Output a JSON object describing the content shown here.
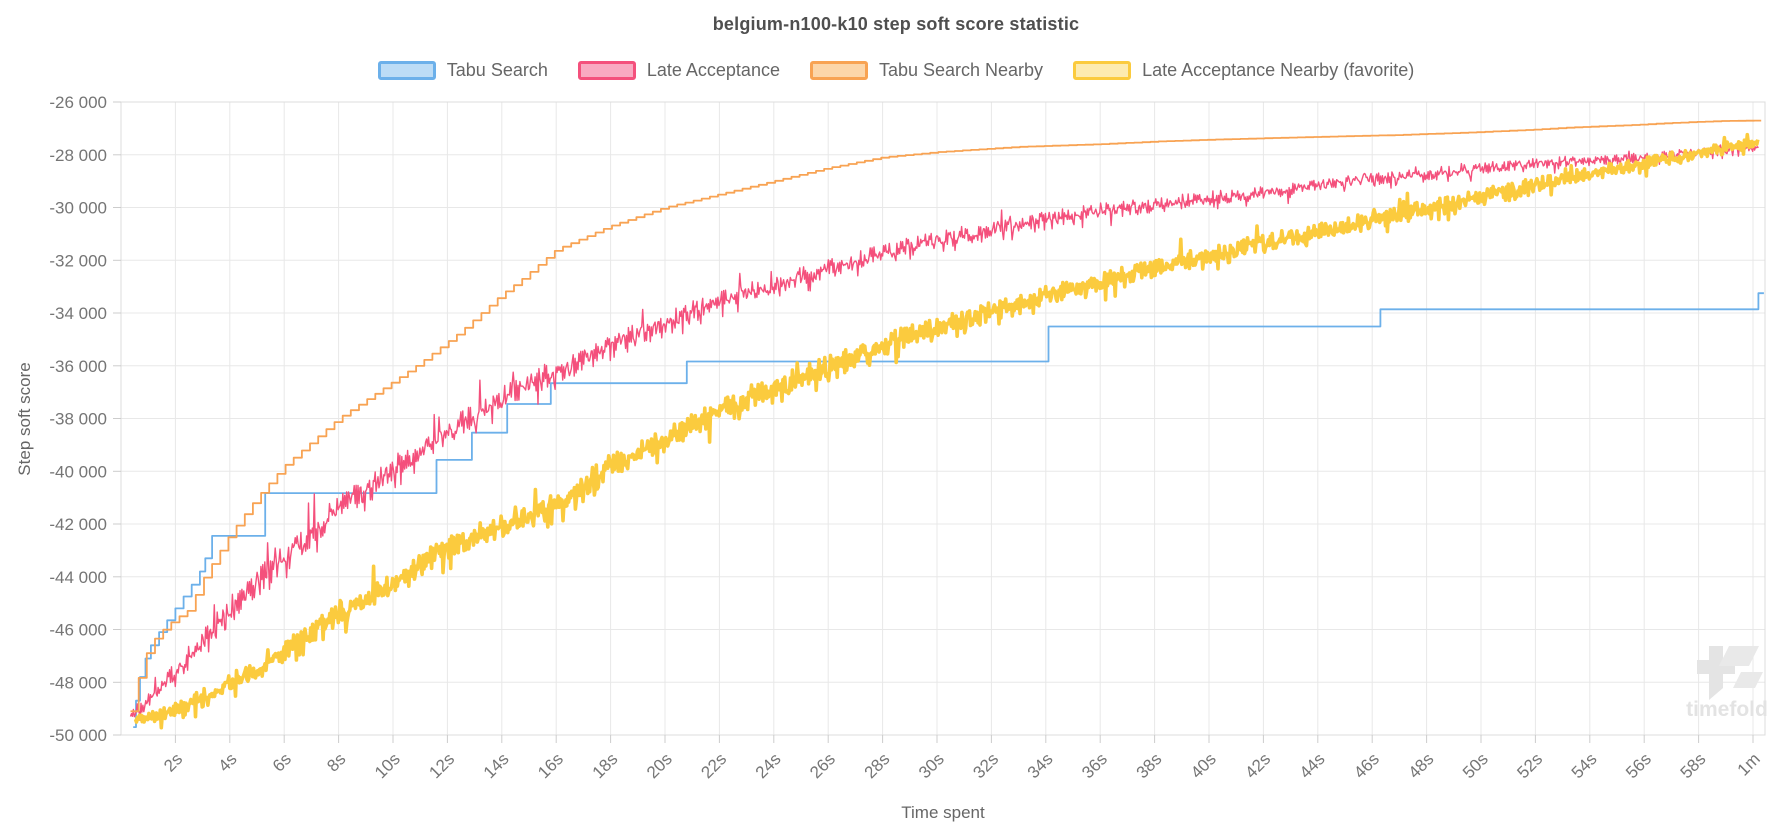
{
  "chart_data": {
    "type": "line",
    "title": "belgium-n100-k10 step soft score statistic",
    "xlabel": "Time spent",
    "ylabel": "Step soft score",
    "ylim": [
      -50000,
      -26000
    ],
    "xlim_seconds": [
      0,
      60.4
    ],
    "grid": true,
    "legend_position": "top",
    "watermark": "timefold",
    "x_ticks": [
      [
        2,
        "2s"
      ],
      [
        4,
        "4s"
      ],
      [
        6,
        "6s"
      ],
      [
        8,
        "8s"
      ],
      [
        10,
        "10s"
      ],
      [
        12,
        "12s"
      ],
      [
        14,
        "14s"
      ],
      [
        16,
        "16s"
      ],
      [
        18,
        "18s"
      ],
      [
        20,
        "20s"
      ],
      [
        22,
        "22s"
      ],
      [
        24,
        "24s"
      ],
      [
        26,
        "26s"
      ],
      [
        28,
        "28s"
      ],
      [
        30,
        "30s"
      ],
      [
        32,
        "32s"
      ],
      [
        34,
        "34s"
      ],
      [
        36,
        "36s"
      ],
      [
        38,
        "38s"
      ],
      [
        40,
        "40s"
      ],
      [
        42,
        "42s"
      ],
      [
        44,
        "44s"
      ],
      [
        46,
        "46s"
      ],
      [
        48,
        "48s"
      ],
      [
        50,
        "50s"
      ],
      [
        52,
        "52s"
      ],
      [
        54,
        "54s"
      ],
      [
        56,
        "56s"
      ],
      [
        58,
        "58s"
      ],
      [
        60,
        "1m"
      ]
    ],
    "y_ticks": [
      [
        -26000,
        "-26 000"
      ],
      [
        -28000,
        "-28 000"
      ],
      [
        -30000,
        "-30 000"
      ],
      [
        -32000,
        "-32 000"
      ],
      [
        -34000,
        "-34 000"
      ],
      [
        -36000,
        "-36 000"
      ],
      [
        -38000,
        "-38 000"
      ],
      [
        -40000,
        "-40 000"
      ],
      [
        -42000,
        "-42 000"
      ],
      [
        -44000,
        "-44 000"
      ],
      [
        -46000,
        "-46 000"
      ],
      [
        -48000,
        "-48 000"
      ],
      [
        -50000,
        "-50 000"
      ]
    ],
    "series": [
      {
        "name": "Tabu Search",
        "color": "#6cb0ea",
        "legend_fill": "#bcdcf6",
        "style": "step",
        "stroke_width": 1.8,
        "seed": 1,
        "draw_order": 0,
        "points": [
          [
            0.45,
            -49700
          ],
          [
            0.55,
            -48700
          ],
          [
            0.7,
            -47800
          ],
          [
            0.9,
            -47100
          ],
          [
            1.1,
            -46600
          ],
          [
            1.4,
            -46100
          ],
          [
            1.7,
            -45650
          ],
          [
            2.0,
            -45200
          ],
          [
            2.3,
            -44750
          ],
          [
            2.6,
            -44300
          ],
          [
            2.9,
            -43800
          ],
          [
            3.1,
            -43300
          ],
          [
            3.35,
            -42450
          ],
          [
            5.3,
            -40830
          ],
          [
            11.6,
            -39570
          ],
          [
            12.9,
            -38540
          ],
          [
            14.2,
            -37450
          ],
          [
            15.8,
            -36660
          ],
          [
            20.8,
            -35840
          ],
          [
            34.1,
            -34510
          ],
          [
            46.3,
            -33860
          ],
          [
            60.2,
            -33250
          ],
          [
            60.4,
            -33250
          ]
        ]
      },
      {
        "name": "Late Acceptance",
        "color": "#f4507c",
        "legend_fill": "#f9a9c1",
        "style": "noisy",
        "stroke_width": 1.4,
        "seed": 7,
        "draw_order": 1,
        "noise_amp": [
          [
            0.4,
            350
          ],
          [
            1,
            650
          ],
          [
            3,
            1000
          ],
          [
            6,
            1100
          ],
          [
            10,
            1000
          ],
          [
            15,
            900
          ],
          [
            20,
            800
          ],
          [
            25,
            720
          ],
          [
            30,
            650
          ],
          [
            35,
            600
          ],
          [
            40,
            550
          ],
          [
            45,
            480
          ],
          [
            50,
            430
          ],
          [
            55,
            380
          ],
          [
            60.2,
            330
          ]
        ],
        "points": [
          [
            0.35,
            -49300
          ],
          [
            0.6,
            -49000
          ],
          [
            1,
            -48700
          ],
          [
            1.5,
            -48200
          ],
          [
            2,
            -47600
          ],
          [
            2.5,
            -47000
          ],
          [
            3,
            -46400
          ],
          [
            3.5,
            -45800
          ],
          [
            4,
            -45200
          ],
          [
            5,
            -44200
          ],
          [
            6,
            -43200
          ],
          [
            7,
            -42300
          ],
          [
            8,
            -41400
          ],
          [
            9,
            -40600
          ],
          [
            10,
            -39900
          ],
          [
            11,
            -39200
          ],
          [
            12,
            -38500
          ],
          [
            13,
            -37800
          ],
          [
            14,
            -37200
          ],
          [
            15,
            -36700
          ],
          [
            16,
            -36200
          ],
          [
            17,
            -35700
          ],
          [
            18,
            -35200
          ],
          [
            19,
            -34700
          ],
          [
            20,
            -34300
          ],
          [
            21,
            -33900
          ],
          [
            22,
            -33500
          ],
          [
            23,
            -33200
          ],
          [
            24,
            -32900
          ],
          [
            25,
            -32600
          ],
          [
            26,
            -32300
          ],
          [
            27,
            -32000
          ],
          [
            28,
            -31700
          ],
          [
            29,
            -31400
          ],
          [
            30,
            -31200
          ],
          [
            32,
            -30800
          ],
          [
            34,
            -30400
          ],
          [
            36,
            -30100
          ],
          [
            38,
            -29900
          ],
          [
            40,
            -29600
          ],
          [
            42,
            -29400
          ],
          [
            44,
            -29100
          ],
          [
            46,
            -28900
          ],
          [
            48,
            -28700
          ],
          [
            50,
            -28500
          ],
          [
            52,
            -28300
          ],
          [
            54,
            -28200
          ],
          [
            56,
            -28100
          ],
          [
            58,
            -27900
          ],
          [
            60.2,
            -27700
          ]
        ]
      },
      {
        "name": "Tabu Search Nearby",
        "color": "#f8a353",
        "legend_fill": "#fcd6a9",
        "style": "step-dense",
        "stroke_width": 1.8,
        "seed": 3,
        "draw_order": 3,
        "points": [
          [
            0.35,
            -49100
          ],
          [
            0.6,
            -48000
          ],
          [
            0.9,
            -47000
          ],
          [
            1.2,
            -46400
          ],
          [
            1.6,
            -45950
          ],
          [
            2.0,
            -45600
          ],
          [
            2.5,
            -45260
          ],
          [
            3.0,
            -44120
          ],
          [
            3.5,
            -43260
          ],
          [
            4.0,
            -42420
          ],
          [
            4.5,
            -41700
          ],
          [
            5.0,
            -41000
          ],
          [
            5.5,
            -40400
          ],
          [
            6.0,
            -39800
          ],
          [
            7.0,
            -38900
          ],
          [
            8.0,
            -38000
          ],
          [
            9.0,
            -37300
          ],
          [
            9.5,
            -36960
          ],
          [
            11,
            -35900
          ],
          [
            12.5,
            -34700
          ],
          [
            14,
            -33300
          ],
          [
            14.7,
            -32750
          ],
          [
            16,
            -31600
          ],
          [
            18,
            -30700
          ],
          [
            20,
            -30000
          ],
          [
            22,
            -29500
          ],
          [
            24,
            -29000
          ],
          [
            26,
            -28500
          ],
          [
            28,
            -28100
          ],
          [
            30,
            -27900
          ],
          [
            33,
            -27700
          ],
          [
            36,
            -27600
          ],
          [
            38,
            -27500
          ],
          [
            40,
            -27430
          ],
          [
            43.3,
            -27340
          ],
          [
            47,
            -27250
          ],
          [
            49.7,
            -27150
          ],
          [
            51.9,
            -27050
          ],
          [
            53.4,
            -26960
          ],
          [
            55.2,
            -26890
          ],
          [
            57.1,
            -26790
          ],
          [
            58.8,
            -26720
          ],
          [
            60.3,
            -26700
          ]
        ]
      },
      {
        "name": "Late Acceptance Nearby (favorite)",
        "color": "#fbcb3e",
        "legend_fill": "#fdebb0",
        "style": "noisy",
        "stroke_width": 3.6,
        "seed": 13,
        "draw_order": 2,
        "noise_amp": [
          [
            0.5,
            300
          ],
          [
            2,
            500
          ],
          [
            4,
            650
          ],
          [
            6,
            750
          ],
          [
            8,
            820
          ],
          [
            12,
            880
          ],
          [
            16,
            900
          ],
          [
            20,
            850
          ],
          [
            25,
            800
          ],
          [
            30,
            750
          ],
          [
            35,
            700
          ],
          [
            40,
            650
          ],
          [
            45,
            600
          ],
          [
            50,
            550
          ],
          [
            55,
            480
          ],
          [
            60.2,
            420
          ]
        ],
        "points": [
          [
            0.5,
            -49400
          ],
          [
            1,
            -49300
          ],
          [
            1.5,
            -49200
          ],
          [
            2,
            -49000
          ],
          [
            2.5,
            -48800
          ],
          [
            3,
            -48500
          ],
          [
            3.5,
            -48300
          ],
          [
            4,
            -48000
          ],
          [
            4.5,
            -47700
          ],
          [
            5,
            -47400
          ],
          [
            6,
            -46800
          ],
          [
            7,
            -46100
          ],
          [
            8,
            -45400
          ],
          [
            9,
            -44800
          ],
          [
            10,
            -44200
          ],
          [
            11,
            -43500
          ],
          [
            12,
            -42900
          ],
          [
            13,
            -42400
          ],
          [
            14,
            -42000
          ],
          [
            15,
            -41700
          ],
          [
            16,
            -41200
          ],
          [
            17,
            -40500
          ],
          [
            18,
            -39800
          ],
          [
            19,
            -39300
          ],
          [
            20,
            -38800
          ],
          [
            21,
            -38200
          ],
          [
            22,
            -37700
          ],
          [
            23,
            -37200
          ],
          [
            24,
            -36800
          ],
          [
            25,
            -36400
          ],
          [
            26,
            -36000
          ],
          [
            27,
            -35600
          ],
          [
            28,
            -35200
          ],
          [
            29,
            -34800
          ],
          [
            30,
            -34500
          ],
          [
            31,
            -34200
          ],
          [
            32,
            -33900
          ],
          [
            33,
            -33600
          ],
          [
            34,
            -33300
          ],
          [
            35,
            -33000
          ],
          [
            36,
            -32800
          ],
          [
            37,
            -32500
          ],
          [
            38,
            -32300
          ],
          [
            39,
            -32000
          ],
          [
            40,
            -31800
          ],
          [
            41,
            -31500
          ],
          [
            42,
            -31300
          ],
          [
            43,
            -31100
          ],
          [
            44,
            -30900
          ],
          [
            45,
            -30700
          ],
          [
            46,
            -30400
          ],
          [
            47,
            -30200
          ],
          [
            48,
            -30000
          ],
          [
            49,
            -29800
          ],
          [
            50,
            -29500
          ],
          [
            51,
            -29300
          ],
          [
            52,
            -29100
          ],
          [
            53,
            -28900
          ],
          [
            54,
            -28700
          ],
          [
            55,
            -28500
          ],
          [
            56,
            -28300
          ],
          [
            57,
            -28100
          ],
          [
            58,
            -27900
          ],
          [
            59,
            -27700
          ],
          [
            60.2,
            -27600
          ]
        ]
      }
    ]
  }
}
